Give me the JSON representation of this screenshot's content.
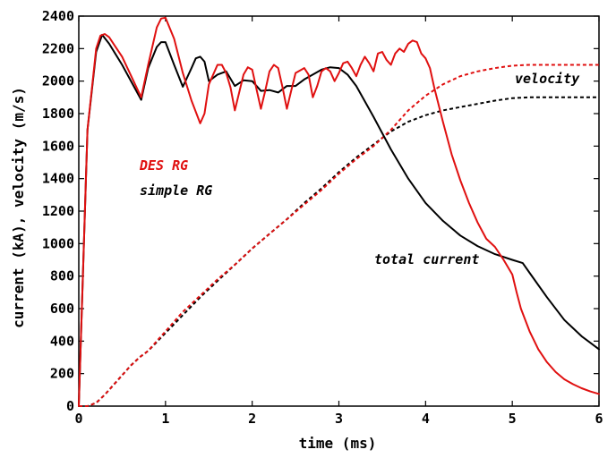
{
  "chart_data": {
    "type": "line",
    "title": "",
    "xlabel": "time (ms)",
    "ylabel": "current (kA), velocity (m/s)",
    "xlim": [
      0,
      6
    ],
    "ylim": [
      0,
      2400
    ],
    "x_ticks": [
      "0",
      "1",
      "2",
      "3",
      "4",
      "5",
      "6"
    ],
    "y_ticks": [
      "0",
      "200",
      "400",
      "600",
      "800",
      "1000",
      "1200",
      "1400",
      "1600",
      "1800",
      "2000",
      "2200",
      "2400"
    ],
    "grid": false,
    "legend": [
      {
        "label": "DES RG",
        "color": "#e01010"
      },
      {
        "label": "simple RG",
        "color": "#000000"
      }
    ],
    "annotations": [
      "velocity",
      "total current"
    ],
    "colors": {
      "des": "#e01010",
      "simple": "#000000"
    },
    "series": [
      {
        "name": "DES RG",
        "quantity": "total current",
        "style": "solid",
        "color": "#e01010",
        "x": [
          0,
          0.1,
          0.2,
          0.25,
          0.3,
          0.35,
          0.5,
          0.72,
          0.8,
          0.9,
          0.95,
          1.0,
          1.1,
          1.2,
          1.3,
          1.4,
          1.45,
          1.5,
          1.6,
          1.65,
          1.7,
          1.75,
          1.8,
          1.9,
          1.95,
          2.0,
          2.05,
          2.1,
          2.15,
          2.2,
          2.25,
          2.3,
          2.35,
          2.4,
          2.45,
          2.5,
          2.6,
          2.65,
          2.7,
          2.75,
          2.8,
          2.85,
          2.9,
          2.95,
          3.0,
          3.05,
          3.1,
          3.15,
          3.2,
          3.25,
          3.3,
          3.35,
          3.4,
          3.45,
          3.5,
          3.55,
          3.6,
          3.65,
          3.7,
          3.75,
          3.8,
          3.85,
          3.9,
          3.95,
          4.0,
          4.05,
          4.1,
          4.2,
          4.3,
          4.4,
          4.5,
          4.6,
          4.7,
          4.8,
          4.9,
          5.0,
          5.05,
          5.1,
          5.2,
          5.3,
          5.4,
          5.5,
          5.6,
          5.7,
          5.8,
          5.9,
          6.0
        ],
        "y": [
          0,
          1700,
          2200,
          2280,
          2290,
          2270,
          2150,
          1900,
          2100,
          2330,
          2385,
          2390,
          2260,
          2050,
          1880,
          1740,
          1800,
          1980,
          2100,
          2100,
          2050,
          1960,
          1820,
          2040,
          2085,
          2070,
          1950,
          1830,
          1940,
          2060,
          2100,
          2080,
          1960,
          1830,
          1940,
          2050,
          2080,
          2040,
          1900,
          1970,
          2060,
          2080,
          2060,
          2000,
          2050,
          2110,
          2120,
          2080,
          2030,
          2100,
          2150,
          2110,
          2060,
          2170,
          2180,
          2130,
          2100,
          2170,
          2200,
          2180,
          2230,
          2250,
          2240,
          2170,
          2140,
          2080,
          1960,
          1750,
          1550,
          1390,
          1250,
          1130,
          1030,
          980,
          900,
          810,
          700,
          600,
          460,
          350,
          270,
          210,
          165,
          135,
          110,
          90,
          75
        ]
      },
      {
        "name": "simple RG",
        "quantity": "total current",
        "style": "solid",
        "color": "#000000",
        "x": [
          0,
          0.1,
          0.2,
          0.27,
          0.35,
          0.5,
          0.72,
          0.8,
          0.9,
          0.95,
          1.0,
          1.1,
          1.2,
          1.3,
          1.35,
          1.4,
          1.45,
          1.5,
          1.6,
          1.7,
          1.8,
          1.9,
          2.0,
          2.05,
          2.1,
          2.2,
          2.3,
          2.4,
          2.5,
          2.6,
          2.7,
          2.8,
          2.9,
          3.0,
          3.1,
          3.2,
          3.4,
          3.6,
          3.8,
          4.0,
          4.2,
          4.4,
          4.6,
          4.8,
          5.0,
          5.12,
          5.2,
          5.4,
          5.6,
          5.8,
          6.0
        ],
        "y": [
          0,
          1700,
          2180,
          2285,
          2230,
          2100,
          1885,
          2080,
          2210,
          2240,
          2240,
          2100,
          1965,
          2080,
          2140,
          2150,
          2120,
          2000,
          2040,
          2060,
          1970,
          2005,
          2000,
          1970,
          1940,
          1945,
          1930,
          1970,
          1970,
          2010,
          2040,
          2070,
          2085,
          2080,
          2040,
          1970,
          1780,
          1580,
          1400,
          1250,
          1140,
          1050,
          985,
          935,
          900,
          880,
          820,
          670,
          530,
          430,
          350
        ]
      },
      {
        "name": "DES RG",
        "quantity": "velocity",
        "style": "dashed",
        "color": "#e01010",
        "x": [
          0,
          0.1,
          0.2,
          0.3,
          0.4,
          0.5,
          0.6,
          0.7,
          0.8,
          1.0,
          1.2,
          1.4,
          1.6,
          1.8,
          2.0,
          2.2,
          2.4,
          2.6,
          2.8,
          3.0,
          3.2,
          3.4,
          3.6,
          3.8,
          4.0,
          4.2,
          4.4,
          4.6,
          4.8,
          5.0,
          5.2,
          5.5,
          6.0
        ],
        "y": [
          0,
          0,
          20,
          70,
          130,
          190,
          250,
          300,
          340,
          460,
          580,
          680,
          780,
          870,
          970,
          1060,
          1150,
          1240,
          1330,
          1430,
          1520,
          1600,
          1700,
          1820,
          1910,
          1980,
          2030,
          2060,
          2080,
          2095,
          2100,
          2100,
          2100
        ]
      },
      {
        "name": "simple RG",
        "quantity": "velocity",
        "style": "dashed",
        "color": "#000000",
        "x": [
          0,
          0.1,
          0.2,
          0.3,
          0.4,
          0.5,
          0.6,
          0.7,
          0.8,
          1.0,
          1.2,
          1.4,
          1.6,
          1.8,
          2.0,
          2.2,
          2.4,
          2.6,
          2.8,
          3.0,
          3.2,
          3.4,
          3.6,
          3.8,
          4.0,
          4.2,
          4.4,
          4.6,
          4.8,
          5.0,
          5.2,
          5.5,
          6.0
        ],
        "y": [
          0,
          0,
          20,
          70,
          130,
          190,
          250,
          300,
          340,
          450,
          560,
          670,
          770,
          870,
          970,
          1060,
          1150,
          1250,
          1340,
          1440,
          1530,
          1610,
          1690,
          1750,
          1790,
          1820,
          1840,
          1860,
          1880,
          1895,
          1900,
          1900,
          1900
        ]
      }
    ]
  }
}
